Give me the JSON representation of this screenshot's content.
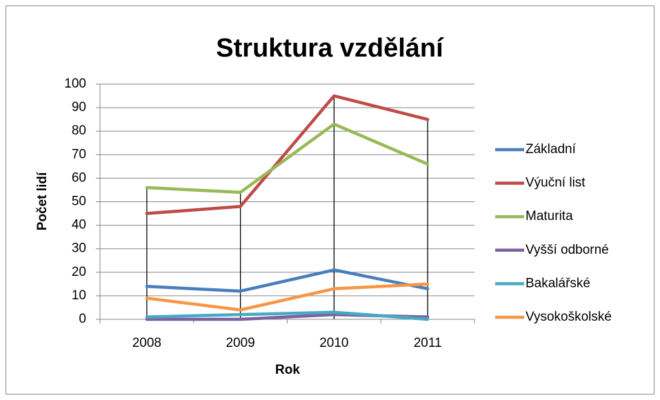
{
  "chart_data": {
    "type": "line",
    "title": "Struktura vzdělání",
    "x_label": "Rok",
    "y_label": "Počet lidí",
    "categories": [
      "2008",
      "2009",
      "2010",
      "2011"
    ],
    "series": [
      {
        "name": "Základní",
        "color": "#4a7ebb",
        "values": [
          14,
          12,
          21,
          13
        ]
      },
      {
        "name": "Výuční list",
        "color": "#be4b48",
        "values": [
          45,
          48,
          95,
          85
        ]
      },
      {
        "name": "Maturita",
        "color": "#98b954",
        "values": [
          56,
          54,
          83,
          66
        ]
      },
      {
        "name": "Vyšší odborné",
        "color": "#7d60a0",
        "values": [
          0,
          0,
          2,
          1
        ]
      },
      {
        "name": "Bakalářské",
        "color": "#46aac5",
        "values": [
          1,
          2,
          3,
          0
        ]
      },
      {
        "name": "Vysokoškolské",
        "color": "#f79646",
        "values": [
          9,
          4,
          13,
          15
        ]
      }
    ],
    "ylim": [
      0,
      100
    ],
    "yticks": [
      0,
      10,
      20,
      30,
      40,
      50,
      60,
      70,
      80,
      90,
      100
    ],
    "grid": true,
    "drop_lines": true,
    "legend": "right"
  }
}
